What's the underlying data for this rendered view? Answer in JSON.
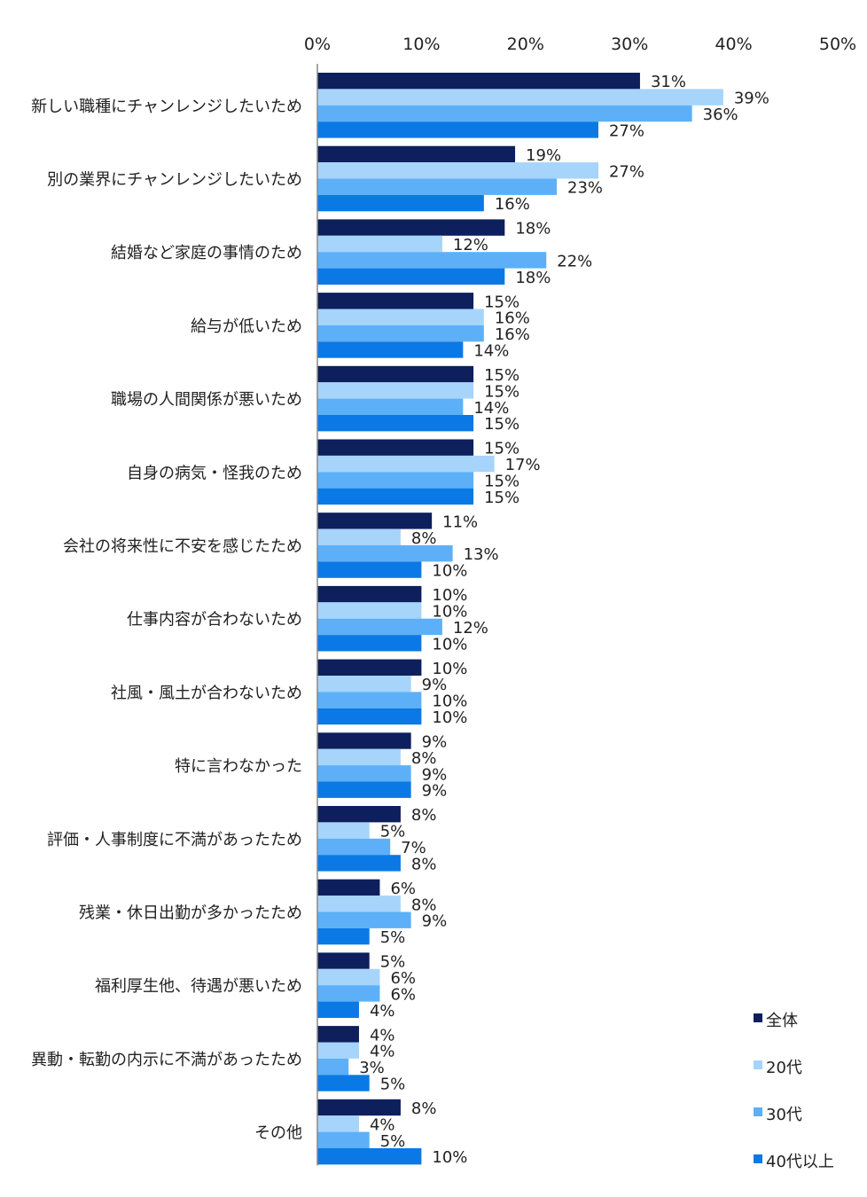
{
  "chart_data": {
    "type": "bar",
    "orientation": "horizontal",
    "categories": [
      "新しい職種にチャンレンジしたいため",
      "別の業界にチャンレンジしたいため",
      "結婚など家庭の事情のため",
      "給与が低いため",
      "職場の人間関係が悪いため",
      "自身の病気・怪我のため",
      "会社の将来性に不安を感じたため",
      "仕事内容が合わないため",
      "社風・風土が合わないため",
      "特に言わなかった",
      "評価・人事制度に不満があったため",
      "残業・休日出勤が多かったため",
      "福利厚生他、待遇が悪いため",
      "異動・転勤の内示に不満があったため",
      "その他"
    ],
    "series": [
      {
        "name": "全体",
        "color": "#0d1f5c",
        "values": [
          31,
          19,
          18,
          15,
          15,
          15,
          11,
          10,
          10,
          9,
          8,
          6,
          5,
          4,
          8
        ]
      },
      {
        "name": "20代",
        "color": "#a6d4fb",
        "values": [
          39,
          27,
          12,
          16,
          15,
          17,
          8,
          10,
          9,
          8,
          5,
          8,
          6,
          4,
          4
        ]
      },
      {
        "name": "30代",
        "color": "#5db0f7",
        "values": [
          36,
          23,
          22,
          16,
          14,
          15,
          13,
          12,
          10,
          9,
          7,
          9,
          6,
          3,
          5
        ]
      },
      {
        "name": "40代以上",
        "color": "#0a79e6",
        "values": [
          27,
          16,
          18,
          14,
          15,
          15,
          10,
          10,
          10,
          9,
          8,
          5,
          4,
          5,
          10
        ]
      }
    ],
    "value_suffix": "%",
    "xlim": [
      0,
      50
    ],
    "xticks": [
      "0%",
      "10%",
      "20%",
      "30%",
      "40%",
      "50%"
    ],
    "axis_position": "top",
    "legend_position": "bottom-right",
    "grid": false
  }
}
